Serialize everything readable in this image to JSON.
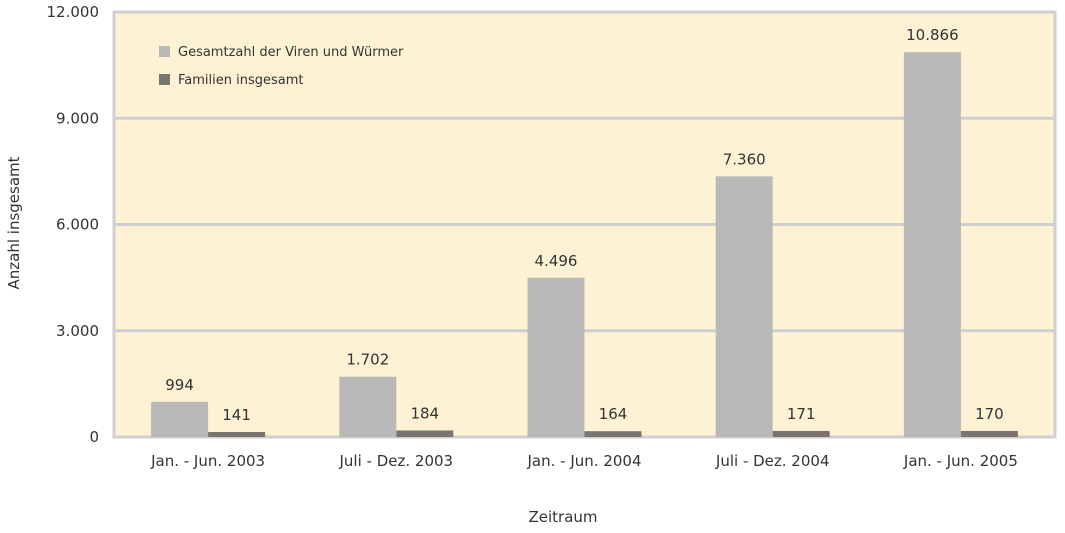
{
  "chart_data": {
    "type": "bar",
    "title": "",
    "xlabel": "Zeitraum",
    "ylabel": "Anzahl insgesamt",
    "ylim": [
      0,
      12000
    ],
    "yticks": [
      0,
      3000,
      6000,
      9000,
      12000
    ],
    "ytick_labels": [
      "0",
      "3.000",
      "6.000",
      "9.000",
      "12.000"
    ],
    "grid": true,
    "legend_position": "top-left",
    "categories": [
      "Jan. - Jun. 2003",
      "Juli - Dez. 2003",
      "Jan. - Jun. 2004",
      "Juli - Dez. 2004",
      "Jan. - Jun. 2005"
    ],
    "series": [
      {
        "name": "Gesamtzahl der Viren und Würmer",
        "color": "#b9b9b9",
        "values": [
          994,
          1702,
          4496,
          7360,
          10866
        ],
        "labels": [
          "994",
          "1.702",
          "4.496",
          "7.360",
          "10.866"
        ]
      },
      {
        "name": "Familien insgesamt",
        "color": "#7a7470",
        "values": [
          141,
          184,
          164,
          171,
          170
        ],
        "labels": [
          "141",
          "184",
          "164",
          "171",
          "170"
        ]
      }
    ],
    "colors": {
      "plot_background": "#fdf3d4",
      "gridline": "#cfcfcf",
      "frame": "#cfcfcf"
    }
  }
}
